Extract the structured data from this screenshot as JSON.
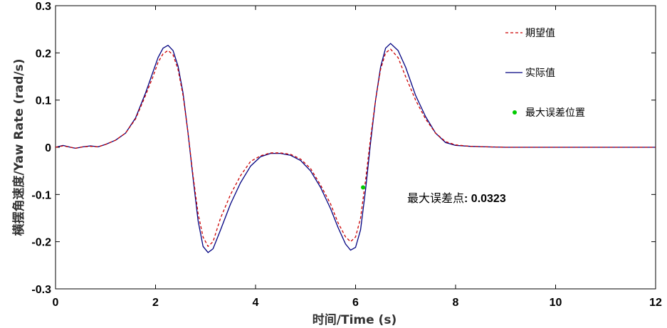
{
  "chart_data": {
    "type": "line",
    "xlabel": "时间/Time (s)",
    "ylabel": "横摆角速度/Yaw Rate (rad/s)",
    "xlim": [
      0,
      12
    ],
    "ylim": [
      -0.3,
      0.3
    ],
    "xticks": [
      "0",
      "2",
      "4",
      "6",
      "8",
      "10",
      "12"
    ],
    "yticks": [
      "-0.3",
      "-0.2",
      "-0.1",
      "0",
      "0.1",
      "0.2",
      "0.3"
    ],
    "grid": false,
    "legend_position": "top-right",
    "series": [
      {
        "name": "期望值",
        "color": "#cc0000",
        "style": "dashed",
        "x": [
          0,
          0.15,
          0.3,
          0.4,
          0.55,
          0.7,
          0.85,
          1.0,
          1.2,
          1.4,
          1.6,
          1.8,
          1.95,
          2.05,
          2.15,
          2.25,
          2.35,
          2.45,
          2.55,
          2.65,
          2.75,
          2.85,
          2.95,
          3.05,
          3.15,
          3.3,
          3.5,
          3.7,
          3.9,
          4.1,
          4.3,
          4.5,
          4.7,
          4.9,
          5.1,
          5.3,
          5.5,
          5.65,
          5.8,
          5.9,
          6.0,
          6.1,
          6.2,
          6.3,
          6.4,
          6.5,
          6.6,
          6.7,
          6.85,
          7.0,
          7.2,
          7.4,
          7.6,
          7.8,
          8.0,
          8.3,
          8.6,
          9.0,
          9.5,
          10,
          11,
          12
        ],
        "y": [
          0,
          0.003,
          0.0,
          -0.002,
          0.001,
          0.002,
          0.001,
          0.006,
          0.015,
          0.03,
          0.06,
          0.11,
          0.15,
          0.18,
          0.198,
          0.205,
          0.196,
          0.165,
          0.11,
          0.03,
          -0.06,
          -0.14,
          -0.19,
          -0.21,
          -0.2,
          -0.15,
          -0.1,
          -0.06,
          -0.03,
          -0.018,
          -0.012,
          -0.012,
          -0.015,
          -0.025,
          -0.045,
          -0.08,
          -0.12,
          -0.16,
          -0.19,
          -0.2,
          -0.19,
          -0.15,
          -0.07,
          0.02,
          0.1,
          0.165,
          0.2,
          0.208,
          0.19,
          0.15,
          0.1,
          0.06,
          0.03,
          0.012,
          0.005,
          0.002,
          0.001,
          0.0,
          0,
          0,
          0,
          0
        ]
      },
      {
        "name": "实际值",
        "color": "#000080",
        "style": "solid",
        "x": [
          0,
          0.15,
          0.3,
          0.4,
          0.55,
          0.7,
          0.85,
          1.0,
          1.2,
          1.4,
          1.6,
          1.8,
          1.95,
          2.05,
          2.15,
          2.25,
          2.35,
          2.45,
          2.55,
          2.65,
          2.75,
          2.85,
          2.95,
          3.05,
          3.15,
          3.3,
          3.5,
          3.7,
          3.9,
          4.1,
          4.3,
          4.5,
          4.7,
          4.9,
          5.1,
          5.3,
          5.5,
          5.65,
          5.8,
          5.9,
          6.0,
          6.1,
          6.2,
          6.3,
          6.4,
          6.5,
          6.6,
          6.7,
          6.85,
          7.0,
          7.2,
          7.4,
          7.6,
          7.8,
          8.0,
          8.3,
          8.6,
          9.0,
          9.5,
          10,
          11,
          12
        ],
        "y": [
          0,
          0.004,
          0.0,
          -0.002,
          0.001,
          0.003,
          0.001,
          0.006,
          0.015,
          0.03,
          0.062,
          0.115,
          0.16,
          0.19,
          0.21,
          0.216,
          0.205,
          0.172,
          0.115,
          0.03,
          -0.065,
          -0.155,
          -0.21,
          -0.223,
          -0.215,
          -0.175,
          -0.12,
          -0.075,
          -0.04,
          -0.02,
          -0.013,
          -0.013,
          -0.017,
          -0.028,
          -0.05,
          -0.085,
          -0.13,
          -0.17,
          -0.205,
          -0.218,
          -0.212,
          -0.175,
          -0.09,
          0.01,
          0.1,
          0.17,
          0.21,
          0.22,
          0.205,
          0.17,
          0.11,
          0.065,
          0.03,
          0.01,
          0.004,
          0.002,
          0.001,
          0.0,
          0,
          0,
          0,
          0
        ]
      }
    ],
    "marker": {
      "name": "最大误差位置",
      "color": "#00cc00",
      "x": 6.15,
      "y": -0.085
    },
    "annotation": {
      "label": "最大误差点",
      "value": ": 0.0323"
    }
  }
}
